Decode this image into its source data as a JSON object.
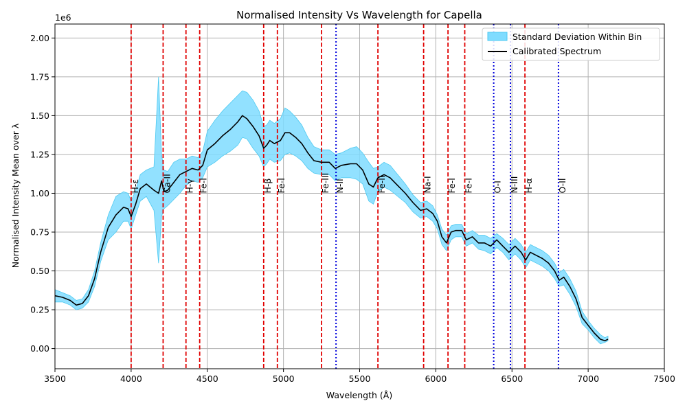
{
  "chart_data": {
    "type": "line",
    "title": "Normalised Intensity Vs Wavelength for Capella",
    "xlabel": "Wavelength (Å)",
    "ylabel": "Normalised Intensity Mean over λ",
    "y_offset_label": "1e6",
    "xlim": [
      3500,
      7500
    ],
    "ylim": [
      -0.13,
      2.09
    ],
    "x_ticks": [
      3500,
      4000,
      4500,
      5000,
      5500,
      6000,
      6500,
      7000,
      7500
    ],
    "x_tick_labels": [
      "3500",
      "4000",
      "4500",
      "5000",
      "5500",
      "6000",
      "6500",
      "7000",
      "7500"
    ],
    "y_ticks": [
      0.0,
      0.25,
      0.5,
      0.75,
      1.0,
      1.25,
      1.5,
      1.75,
      2.0
    ],
    "y_tick_labels": [
      "0.00",
      "0.25",
      "0.50",
      "0.75",
      "1.00",
      "1.25",
      "1.50",
      "1.75",
      "2.00"
    ],
    "grid": true,
    "legend_position": "top-right",
    "colors": {
      "band_fill": "#7fdcff",
      "band_edge": "#4cc9f0",
      "spectrum": "#000000",
      "dashed_line": "#e00000",
      "dotted_line": "#0000dd",
      "grid": "#b0b0b0"
    },
    "series": [
      {
        "name": "Calibrated Spectrum",
        "x": [
          3500,
          3550,
          3600,
          3640,
          3680,
          3720,
          3760,
          3800,
          3850,
          3900,
          3950,
          3980,
          4000,
          4030,
          4060,
          4100,
          4150,
          4180,
          4200,
          4215,
          4240,
          4280,
          4320,
          4360,
          4400,
          4440,
          4470,
          4500,
          4550,
          4600,
          4650,
          4700,
          4730,
          4760,
          4800,
          4840,
          4870,
          4890,
          4910,
          4940,
          4980,
          5010,
          5040,
          5080,
          5120,
          5160,
          5200,
          5250,
          5300,
          5340,
          5380,
          5440,
          5480,
          5520,
          5560,
          5590,
          5620,
          5660,
          5700,
          5750,
          5800,
          5850,
          5900,
          5940,
          5980,
          6010,
          6040,
          6070,
          6100,
          6130,
          6170,
          6200,
          6240,
          6280,
          6320,
          6360,
          6400,
          6440,
          6480,
          6520,
          6560,
          6590,
          6620,
          6660,
          6700,
          6740,
          6780,
          6810,
          6840,
          6880,
          6920,
          6960,
          7000,
          7040,
          7080,
          7110,
          7130
        ],
        "y": [
          0.34,
          0.33,
          0.31,
          0.28,
          0.29,
          0.34,
          0.45,
          0.62,
          0.78,
          0.86,
          0.91,
          0.9,
          0.85,
          0.93,
          1.03,
          1.06,
          1.02,
          1.0,
          1.08,
          1.01,
          1.02,
          1.07,
          1.12,
          1.14,
          1.16,
          1.15,
          1.18,
          1.28,
          1.32,
          1.37,
          1.41,
          1.46,
          1.5,
          1.48,
          1.43,
          1.37,
          1.29,
          1.31,
          1.34,
          1.32,
          1.34,
          1.39,
          1.39,
          1.36,
          1.32,
          1.26,
          1.21,
          1.2,
          1.2,
          1.16,
          1.18,
          1.19,
          1.19,
          1.15,
          1.06,
          1.04,
          1.1,
          1.12,
          1.1,
          1.05,
          1.0,
          0.94,
          0.89,
          0.9,
          0.87,
          0.82,
          0.72,
          0.68,
          0.75,
          0.76,
          0.76,
          0.7,
          0.72,
          0.68,
          0.68,
          0.66,
          0.7,
          0.66,
          0.62,
          0.66,
          0.62,
          0.57,
          0.62,
          0.6,
          0.58,
          0.55,
          0.5,
          0.44,
          0.46,
          0.4,
          0.32,
          0.2,
          0.15,
          0.1,
          0.06,
          0.05,
          0.06
        ]
      },
      {
        "name": "Standard Deviation Within Bin",
        "x": [
          3500,
          3550,
          3600,
          3640,
          3680,
          3720,
          3760,
          3800,
          3850,
          3900,
          3950,
          3980,
          4000,
          4030,
          4060,
          4100,
          4150,
          4180,
          4200,
          4215,
          4240,
          4280,
          4320,
          4360,
          4400,
          4440,
          4470,
          4500,
          4550,
          4600,
          4650,
          4700,
          4730,
          4760,
          4800,
          4840,
          4870,
          4890,
          4910,
          4940,
          4980,
          5010,
          5040,
          5080,
          5120,
          5160,
          5200,
          5250,
          5300,
          5340,
          5380,
          5440,
          5480,
          5520,
          5560,
          5590,
          5620,
          5660,
          5700,
          5750,
          5800,
          5850,
          5900,
          5940,
          5980,
          6010,
          6040,
          6070,
          6100,
          6130,
          6170,
          6200,
          6240,
          6280,
          6320,
          6360,
          6400,
          6440,
          6480,
          6520,
          6560,
          6590,
          6620,
          6660,
          6700,
          6740,
          6780,
          6810,
          6840,
          6880,
          6920,
          6960,
          7000,
          7040,
          7080,
          7110,
          7130
        ],
        "upper": [
          0.38,
          0.36,
          0.34,
          0.31,
          0.32,
          0.38,
          0.5,
          0.68,
          0.86,
          0.98,
          1.01,
          1.0,
          0.95,
          1.02,
          1.12,
          1.15,
          1.17,
          1.75,
          1.25,
          1.15,
          1.14,
          1.2,
          1.22,
          1.22,
          1.24,
          1.23,
          1.27,
          1.4,
          1.47,
          1.53,
          1.58,
          1.63,
          1.66,
          1.65,
          1.6,
          1.53,
          1.43,
          1.44,
          1.47,
          1.45,
          1.48,
          1.55,
          1.53,
          1.49,
          1.44,
          1.36,
          1.3,
          1.28,
          1.28,
          1.25,
          1.26,
          1.29,
          1.3,
          1.26,
          1.2,
          1.16,
          1.17,
          1.2,
          1.18,
          1.12,
          1.06,
          0.99,
          0.94,
          0.95,
          0.92,
          0.86,
          0.77,
          0.73,
          0.79,
          0.8,
          0.8,
          0.74,
          0.76,
          0.73,
          0.73,
          0.71,
          0.74,
          0.71,
          0.67,
          0.71,
          0.67,
          0.62,
          0.67,
          0.65,
          0.63,
          0.6,
          0.55,
          0.49,
          0.51,
          0.45,
          0.37,
          0.24,
          0.18,
          0.13,
          0.09,
          0.07,
          0.08
        ],
        "lower": [
          0.3,
          0.3,
          0.28,
          0.25,
          0.26,
          0.3,
          0.4,
          0.56,
          0.7,
          0.75,
          0.82,
          0.82,
          0.77,
          0.86,
          0.95,
          0.98,
          0.89,
          0.55,
          0.85,
          0.9,
          0.92,
          0.96,
          1.0,
          1.05,
          1.08,
          1.07,
          1.1,
          1.17,
          1.2,
          1.24,
          1.27,
          1.31,
          1.36,
          1.35,
          1.29,
          1.24,
          1.17,
          1.19,
          1.22,
          1.2,
          1.21,
          1.25,
          1.26,
          1.24,
          1.21,
          1.16,
          1.13,
          1.12,
          1.12,
          1.08,
          1.1,
          1.1,
          1.09,
          1.06,
          0.95,
          0.93,
          1.01,
          1.04,
          1.02,
          0.98,
          0.94,
          0.88,
          0.84,
          0.85,
          0.82,
          0.77,
          0.67,
          0.63,
          0.7,
          0.72,
          0.72,
          0.66,
          0.68,
          0.64,
          0.63,
          0.61,
          0.65,
          0.62,
          0.57,
          0.61,
          0.57,
          0.52,
          0.57,
          0.55,
          0.53,
          0.5,
          0.45,
          0.4,
          0.41,
          0.35,
          0.27,
          0.16,
          0.12,
          0.07,
          0.03,
          0.04,
          0.05
        ]
      }
    ],
    "vertical_lines": [
      {
        "x": 4000,
        "label": "H-ε",
        "style": "dashed"
      },
      {
        "x": 4210,
        "label": "Ca-II",
        "style": "dashed"
      },
      {
        "x": 4360,
        "label": "H-γ",
        "style": "dashed"
      },
      {
        "x": 4450,
        "label": "Fe-I",
        "style": "dashed"
      },
      {
        "x": 4870,
        "label": "H-β",
        "style": "dashed"
      },
      {
        "x": 4960,
        "label": "Fe-I",
        "style": "dashed"
      },
      {
        "x": 5250,
        "label": "Fe-III",
        "style": "dashed"
      },
      {
        "x": 5345,
        "label": "N-II",
        "style": "dotted"
      },
      {
        "x": 5620,
        "label": "Fe-II",
        "style": "dashed"
      },
      {
        "x": 5920,
        "label": "Na-I",
        "style": "dashed"
      },
      {
        "x": 6080,
        "label": "Fe-I",
        "style": "dashed"
      },
      {
        "x": 6190,
        "label": "Fe-I",
        "style": "dashed"
      },
      {
        "x": 6380,
        "label": "O-I",
        "style": "dotted"
      },
      {
        "x": 6490,
        "label": "N-III",
        "style": "dotted"
      },
      {
        "x": 6585,
        "label": "H-α",
        "style": "dashed"
      },
      {
        "x": 6805,
        "label": "O-II",
        "style": "dotted"
      }
    ],
    "line_label_y": 1.0,
    "legend": [
      {
        "label": "Standard Deviation Within Bin",
        "kind": "band"
      },
      {
        "label": "Calibrated Spectrum",
        "kind": "line"
      }
    ]
  }
}
